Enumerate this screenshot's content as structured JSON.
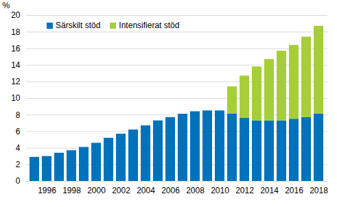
{
  "chart_data": {
    "type": "bar",
    "stacked": true,
    "grid": true,
    "legend": "top-left",
    "ylabel": "%",
    "categories": [
      null,
      "1996",
      null,
      "1998",
      null,
      "2000",
      null,
      "2002",
      null,
      "2004",
      null,
      "2006",
      null,
      "2008",
      null,
      "2010",
      null,
      "2012",
      null,
      "2014",
      null,
      "2016",
      null,
      "2018"
    ],
    "series": [
      {
        "name": "Särskilt stöd",
        "color": "#0072bc",
        "values": [
          2.9,
          3.0,
          3.4,
          3.7,
          4.1,
          4.6,
          5.2,
          5.7,
          6.2,
          6.7,
          7.3,
          7.7,
          8.1,
          8.4,
          8.5,
          8.5,
          8.1,
          7.6,
          7.3,
          7.3,
          7.3,
          7.5,
          7.7,
          8.1
        ]
      },
      {
        "name": "Intensifierat stöd",
        "color": "#a6ce39",
        "values": [
          null,
          null,
          null,
          null,
          null,
          null,
          null,
          null,
          null,
          null,
          null,
          null,
          null,
          null,
          null,
          null,
          3.3,
          5.1,
          6.5,
          7.4,
          8.4,
          8.9,
          9.7,
          10.6
        ]
      }
    ],
    "ylim": [
      0,
      20
    ],
    "yticks": [
      0,
      2,
      4,
      6,
      8,
      10,
      12,
      14,
      16,
      18,
      20
    ]
  }
}
